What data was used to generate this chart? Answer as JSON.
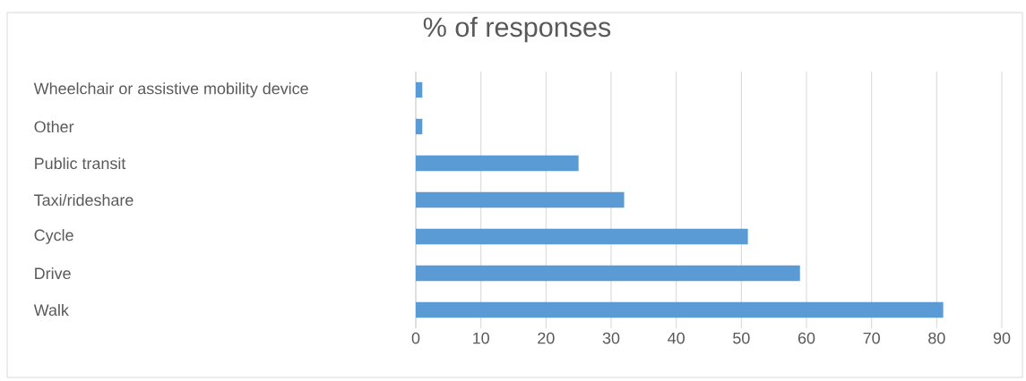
{
  "chart_data": {
    "type": "bar",
    "orientation": "horizontal",
    "title": "% of responses",
    "categories": [
      "Wheelchair or assistive mobility device",
      "Other",
      "Public transit",
      "Taxi/rideshare",
      "Cycle",
      "Drive",
      "Walk"
    ],
    "values": [
      1,
      1,
      25,
      32,
      51,
      59,
      81
    ],
    "color": "#5b9bd5",
    "xlim": [
      0,
      90
    ],
    "xticks": [
      0,
      10,
      20,
      30,
      40,
      50,
      60,
      70,
      80,
      90
    ],
    "grid": "x"
  }
}
